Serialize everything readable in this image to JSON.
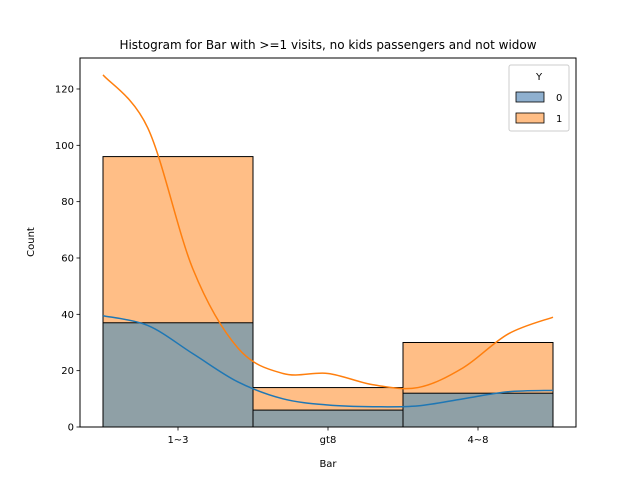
{
  "chart_data": {
    "type": "bar",
    "title": "Histogram for Bar with >=1 visits, no kids passengers and not widow",
    "xlabel": "Bar",
    "ylabel": "Count",
    "categories": [
      "1~3",
      "gt8",
      "4~8"
    ],
    "ylim": [
      0,
      131
    ],
    "yticks": [
      0,
      20,
      40,
      60,
      80,
      100,
      120
    ],
    "stacked": false,
    "legend": {
      "title": "Y",
      "position": "top-right"
    },
    "series": [
      {
        "name": "1",
        "values": [
          96,
          14,
          30
        ],
        "color": "#ff7f0e",
        "fill": "#ffbe86"
      },
      {
        "name": "0",
        "values": [
          37,
          6,
          12
        ],
        "color": "#1f77b4",
        "fill": "#8fa0a6"
      }
    ],
    "kde": [
      {
        "name": "1",
        "color": "#ff7f0e",
        "x": [
          0,
          0.3,
          0.6,
          0.9,
          1.2,
          1.5,
          1.8,
          2.1,
          2.4,
          2.7,
          3.0
        ],
        "y": [
          125,
          106,
          56,
          28,
          19,
          19,
          15,
          14,
          21,
          33,
          39
        ]
      },
      {
        "name": "0",
        "color": "#1f77b4",
        "x": [
          0,
          0.3,
          0.6,
          0.9,
          1.2,
          1.5,
          1.8,
          2.1,
          2.4,
          2.7,
          3.0
        ],
        "y": [
          39.5,
          36,
          26,
          16,
          10,
          7.8,
          7.2,
          7.5,
          10,
          12.5,
          13
        ]
      }
    ]
  }
}
